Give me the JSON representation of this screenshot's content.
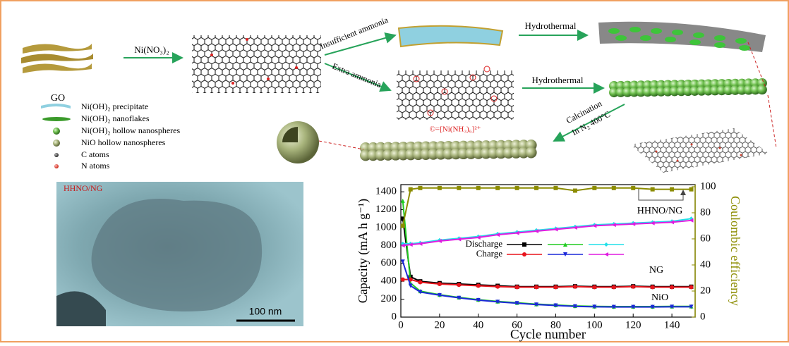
{
  "diagram": {
    "go_label": "GO",
    "reagent": "Ni(NO₃)₂",
    "insufficient": "Insufficient ammonia",
    "extra": "Extra ammonia",
    "hydrothermal_top": "Hydrothermal",
    "hydrothermal_bottom": "Hydrothermal",
    "complex": "©=[Ni(NH₃)₆]²⁺",
    "calcination": [
      "Calcination",
      "In N₂ 400°C"
    ],
    "legend": [
      "Ni(OH)₂ precipitate",
      "Ni(OH)₂ nanoflakes",
      "Ni(OH)₂ hollow nanospheres",
      "NiO hollow nanospheres",
      "C atoms",
      "N atoms"
    ],
    "tem_label": "HHNO/NG",
    "scale_bar": "100 nm"
  },
  "chart_data": {
    "type": "line",
    "xlabel": "Cycle number",
    "ylabel": "Capacity (mA h g⁻¹)",
    "y2label": "Coulombic efficiency",
    "x": [
      1,
      5,
      10,
      20,
      30,
      40,
      50,
      60,
      70,
      80,
      90,
      100,
      110,
      120,
      130,
      140,
      150
    ],
    "series": [
      {
        "color": "#000000",
        "marker": "square",
        "values": [
          1100,
          450,
          400,
          380,
          370,
          360,
          350,
          340,
          340,
          340,
          345,
          340,
          340,
          345,
          340,
          340,
          340
        ]
      },
      {
        "color": "#22cc22",
        "marker": "triangle-up",
        "values": [
          1300,
          380,
          290,
          250,
          220,
          195,
          175,
          160,
          145,
          135,
          125,
          120,
          118,
          118,
          118,
          120,
          120
        ]
      },
      {
        "color": "#22e0e8",
        "marker": "diamond",
        "values": [
          820,
          820,
          830,
          860,
          880,
          900,
          930,
          950,
          970,
          990,
          1010,
          1030,
          1040,
          1050,
          1060,
          1070,
          1100
        ]
      },
      {
        "color": "#e8141c",
        "marker": "circle",
        "values": [
          420,
          420,
          390,
          370,
          360,
          350,
          340,
          335,
          335,
          335,
          340,
          335,
          335,
          340,
          335,
          335,
          335
        ]
      },
      {
        "color": "#1c28d8",
        "marker": "triangle-down",
        "values": [
          620,
          350,
          280,
          245,
          215,
          190,
          170,
          155,
          140,
          130,
          120,
          115,
          113,
          113,
          113,
          115,
          115
        ]
      },
      {
        "color": "#e01ce0",
        "marker": "triangle-left",
        "values": [
          800,
          810,
          820,
          850,
          870,
          890,
          920,
          940,
          960,
          980,
          1000,
          1020,
          1030,
          1040,
          1050,
          1060,
          1080
        ]
      },
      {
        "color": "#8c8c00",
        "marker": "square",
        "axis": "y2",
        "values": [
          70,
          98,
          99,
          99,
          99,
          99,
          99,
          99,
          99,
          99,
          97,
          99,
          99,
          99,
          98,
          98,
          98
        ]
      }
    ],
    "legend": [
      "Discharge",
      "Charge"
    ],
    "annotations": [
      "HHNO/NG",
      "NG",
      "NiO"
    ],
    "xlim": [
      0,
      152
    ],
    "xticks": [
      0,
      20,
      40,
      60,
      80,
      100,
      120,
      140
    ],
    "ylim": [
      0,
      1480
    ],
    "yticks": [
      0,
      200,
      400,
      600,
      800,
      1000,
      1200,
      1400
    ],
    "y2lim": [
      0,
      101.6
    ],
    "y2ticks": [
      0,
      20,
      40,
      60,
      80,
      100
    ],
    "y2color": "#8c8c00"
  }
}
